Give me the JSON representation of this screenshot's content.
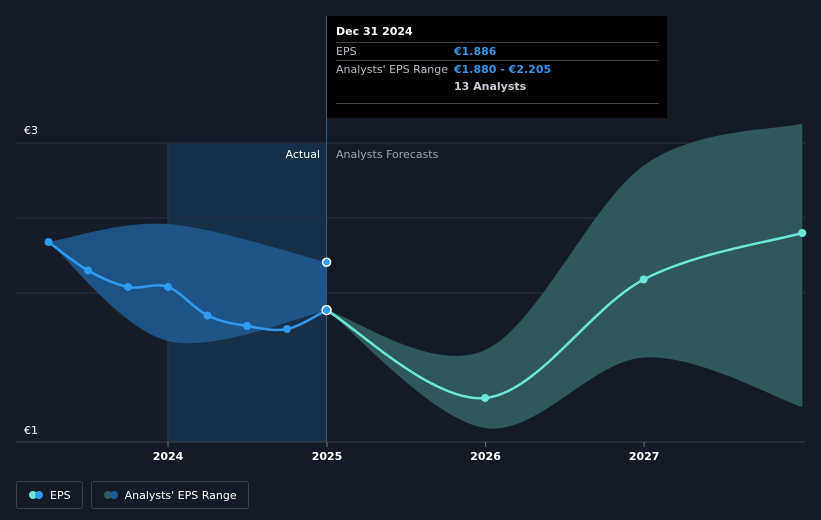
{
  "tooltip": {
    "date": "Dec 31 2024",
    "rows": [
      {
        "label": "EPS",
        "value": "€1.886"
      },
      {
        "label": "Analysts' EPS Range",
        "value": "€1.880 - €2.205"
      }
    ],
    "analysts": "13 Analysts"
  },
  "legend": {
    "eps_label": "EPS",
    "range_label": "Analysts' EPS Range"
  },
  "colors": {
    "background": "#151b26",
    "actual_line": "#2f9bf0",
    "actual_band": "#1f5c94",
    "forecast_line": "#6ee7d8",
    "forecast_band": "#2f5c5c"
  },
  "chart_data": {
    "type": "line",
    "y_axis": {
      "min": 1,
      "max": 3,
      "tick_labels": [
        "€3",
        "€1"
      ],
      "unit": "€"
    },
    "x_ticks": [
      "2024",
      "2025",
      "2026",
      "2027"
    ],
    "region_labels": {
      "actual": "Actual",
      "forecast": "Analysts Forecasts"
    },
    "grid": true,
    "series": [
      {
        "name": "EPS",
        "kind": "actual",
        "points": [
          {
            "x": "2023-04-01",
            "y": 2.34
          },
          {
            "x": "2023-07-01",
            "y": 2.15
          },
          {
            "x": "2023-10-01",
            "y": 2.04
          },
          {
            "x": "2024-01-01",
            "y": 2.04
          },
          {
            "x": "2024-04-01",
            "y": 1.85
          },
          {
            "x": "2024-07-01",
            "y": 1.78
          },
          {
            "x": "2024-10-01",
            "y": 1.76
          },
          {
            "x": "2024-12-31",
            "y": 1.886
          }
        ]
      },
      {
        "name": "EPS forecast",
        "kind": "forecast",
        "points": [
          {
            "x": "2024-12-31",
            "y": 1.886
          },
          {
            "x": "2025-12-31",
            "y": 1.3
          },
          {
            "x": "2026-12-31",
            "y": 2.09
          },
          {
            "x": "2027-12-31",
            "y": 2.4
          }
        ]
      }
    ],
    "range_bands": [
      {
        "name": "Analysts' EPS Range",
        "kind": "actual",
        "upper": [
          {
            "x": "2023-04-01",
            "y": 2.34
          },
          {
            "x": "2024-01-01",
            "y": 2.46
          },
          {
            "x": "2024-12-31",
            "y": 2.205
          }
        ],
        "lower": [
          {
            "x": "2023-04-01",
            "y": 2.34
          },
          {
            "x": "2024-01-01",
            "y": 1.68
          },
          {
            "x": "2024-12-31",
            "y": 1.88
          }
        ],
        "marker": {
          "x": "2024-12-31",
          "y": 2.205
        }
      },
      {
        "name": "Analysts' EPS Range",
        "kind": "forecast",
        "upper": [
          {
            "x": "2024-12-31",
            "y": 1.886
          },
          {
            "x": "2025-12-31",
            "y": 1.62
          },
          {
            "x": "2026-12-31",
            "y": 2.85
          },
          {
            "x": "2027-12-31",
            "y": 3.13
          }
        ],
        "lower": [
          {
            "x": "2024-12-31",
            "y": 1.886
          },
          {
            "x": "2025-12-31",
            "y": 1.1
          },
          {
            "x": "2026-12-31",
            "y": 1.57
          },
          {
            "x": "2027-12-31",
            "y": 1.24
          }
        ]
      }
    ],
    "highlight_date": "2024-12-31"
  }
}
